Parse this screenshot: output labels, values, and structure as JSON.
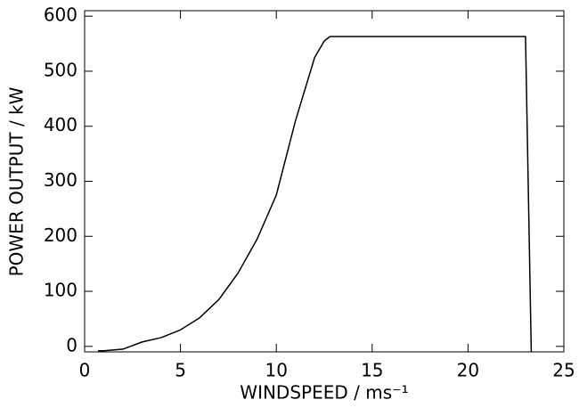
{
  "chart_data": {
    "type": "line",
    "xlabel": "WINDSPEED / ms⁻¹",
    "ylabel": "POWER OUTPUT / kW",
    "x": [
      0.7,
      1,
      2,
      3,
      4,
      5,
      6,
      7,
      8,
      9,
      10,
      11,
      12,
      12.5,
      12.8,
      23,
      23.3
    ],
    "values": [
      -8,
      -8,
      -5,
      8,
      16,
      30,
      52,
      85,
      133,
      195,
      275,
      410,
      525,
      555,
      563,
      563,
      -10
    ],
    "color": "#000000",
    "xlim": [
      0,
      25
    ],
    "xticks": [
      0,
      5,
      10,
      15,
      20,
      25
    ],
    "ylim": [
      -10,
      610
    ],
    "yticks": [
      0,
      100,
      200,
      300,
      400,
      500,
      600
    ]
  }
}
